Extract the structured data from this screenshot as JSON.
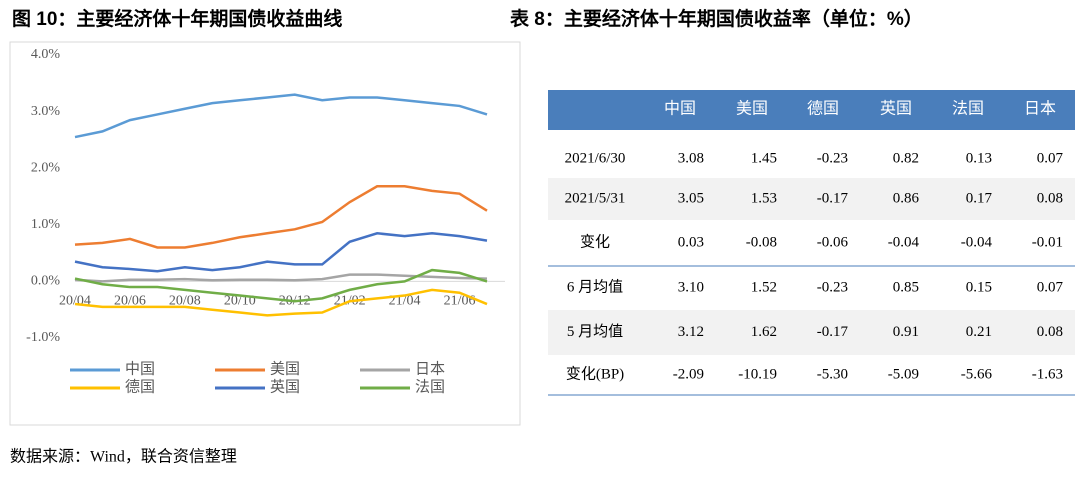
{
  "figure_title": "图 10：主要经济体十年期国债收益曲线",
  "chart_data": {
    "type": "line",
    "categories": [
      "20/04",
      null,
      "20/06",
      null,
      "20/08",
      null,
      "20/10",
      null,
      "20/12",
      null,
      "21/02",
      null,
      "21/04",
      null,
      "21/06",
      null
    ],
    "series": [
      {
        "name": "中国",
        "color": "#5b9bd5",
        "values": [
          2.55,
          2.65,
          2.85,
          2.95,
          3.05,
          3.15,
          3.2,
          3.25,
          3.3,
          3.2,
          3.25,
          3.25,
          3.2,
          3.15,
          3.1,
          2.95
        ]
      },
      {
        "name": "美国",
        "color": "#ed7d31",
        "values": [
          0.65,
          0.68,
          0.75,
          0.6,
          0.6,
          0.68,
          0.78,
          0.85,
          0.92,
          1.05,
          1.4,
          1.68,
          1.68,
          1.6,
          1.55,
          1.25
        ]
      },
      {
        "name": "日本",
        "color": "#a5a5a5",
        "values": [
          0.03,
          0.0,
          0.03,
          0.03,
          0.04,
          0.02,
          0.03,
          0.03,
          0.02,
          0.04,
          0.12,
          0.12,
          0.1,
          0.08,
          0.06,
          0.05
        ]
      },
      {
        "name": "德国",
        "color": "#ffc000",
        "values": [
          -0.4,
          -0.45,
          -0.45,
          -0.45,
          -0.45,
          -0.5,
          -0.55,
          -0.6,
          -0.57,
          -0.55,
          -0.35,
          -0.3,
          -0.25,
          -0.15,
          -0.2,
          -0.4
        ]
      },
      {
        "name": "英国",
        "color": "#4472c4",
        "values": [
          0.35,
          0.25,
          0.22,
          0.18,
          0.25,
          0.2,
          0.25,
          0.35,
          0.3,
          0.3,
          0.7,
          0.85,
          0.8,
          0.85,
          0.8,
          0.72
        ]
      },
      {
        "name": "法国",
        "color": "#70ad47",
        "values": [
          0.05,
          -0.05,
          -0.1,
          -0.1,
          -0.15,
          -0.2,
          -0.25,
          -0.3,
          -0.35,
          -0.3,
          -0.15,
          -0.05,
          0.0,
          0.2,
          0.15,
          0.0
        ]
      }
    ],
    "ylim": [
      -1,
      4
    ],
    "yticks": [
      {
        "value": -1,
        "label": "-1.0%"
      },
      {
        "value": 0,
        "label": "0.0%"
      },
      {
        "value": 1,
        "label": "1.0%"
      },
      {
        "value": 2,
        "label": "2.0%"
      },
      {
        "value": 3,
        "label": "3.0%"
      },
      {
        "value": 4,
        "label": "4.0%"
      }
    ],
    "grid": false
  },
  "table": {
    "title": "表 8：主要经济体十年期国债收益率（单位：%）",
    "header": [
      "中国",
      "美国",
      "德国",
      "英国",
      "法国",
      "日本"
    ],
    "rows": [
      [
        "2021/6/30",
        "3.08",
        "1.45",
        "-0.23",
        "0.82",
        "0.13",
        "0.07"
      ],
      [
        "2021/5/31",
        "3.05",
        "1.53",
        "-0.17",
        "0.86",
        "0.17",
        "0.08"
      ],
      [
        "变化",
        "0.03",
        "-0.08",
        "-0.06",
        "-0.04",
        "-0.04",
        "-0.01"
      ],
      [
        "6 月均值",
        "3.10",
        "1.52",
        "-0.23",
        "0.85",
        "0.15",
        "0.07"
      ],
      [
        "5 月均值",
        "3.12",
        "1.62",
        "-0.17",
        "0.91",
        "0.21",
        "0.08"
      ],
      [
        "变化(BP)",
        "-2.09",
        "-10.19",
        "-5.30",
        "-5.09",
        "-5.66",
        "-1.63"
      ]
    ]
  },
  "source": "数据来源：Wind，联合资信整理"
}
